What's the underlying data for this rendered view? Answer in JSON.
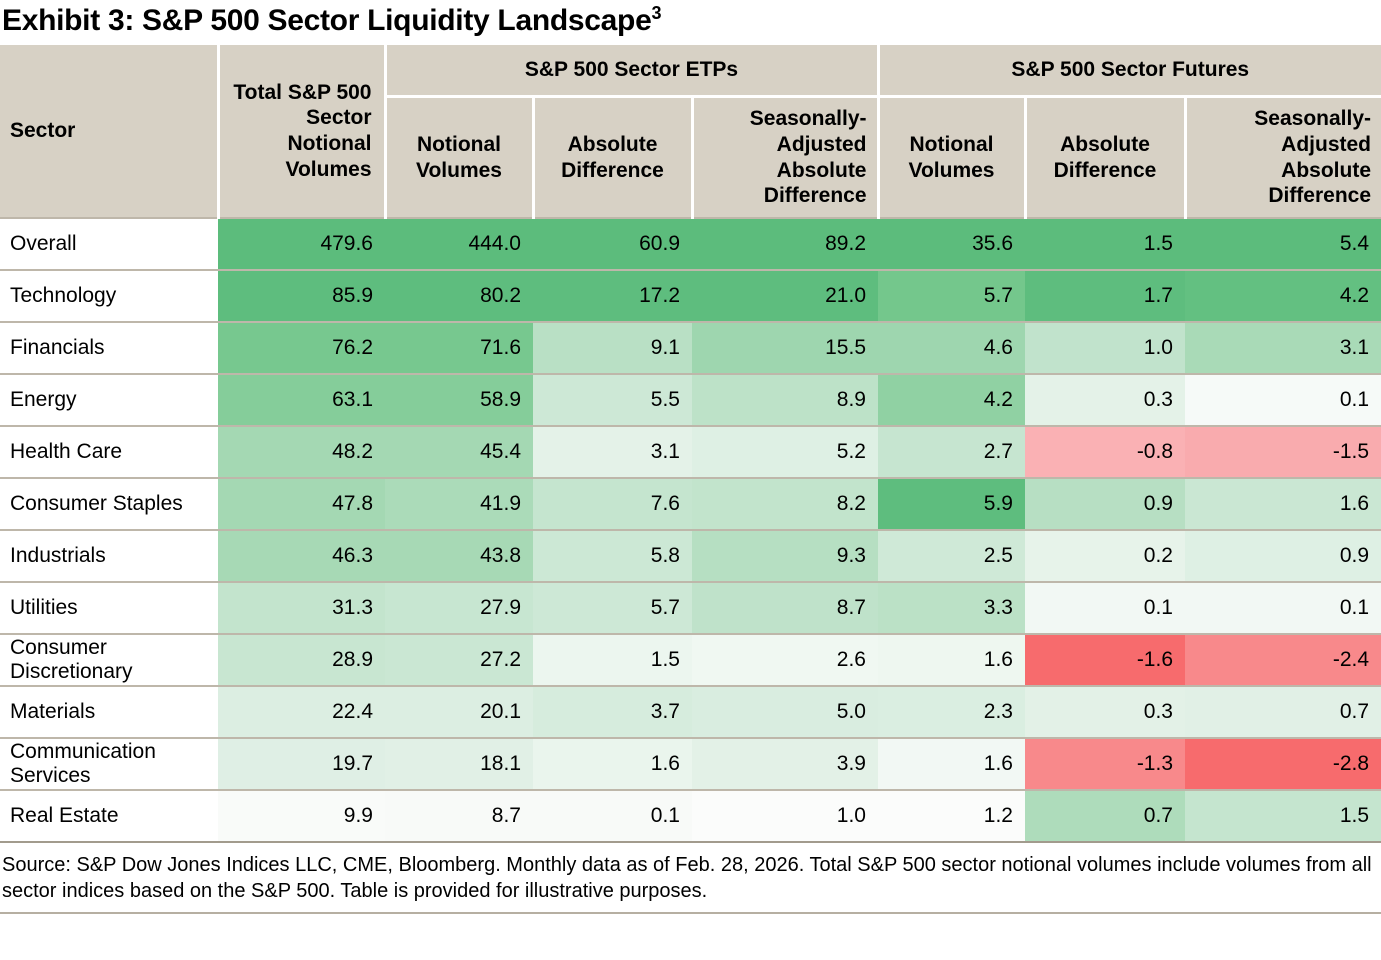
{
  "title": {
    "text": "Exhibit 3: S&P 500 Sector Liquidity Landscape",
    "superscript": "3"
  },
  "table": {
    "corner_label": "Sector",
    "total_header": "Total S&P 500 Sector Notional Volumes",
    "groups": [
      {
        "label": "S&P 500 Sector ETPs",
        "columns": [
          "Notional Volumes",
          "Absolute Difference",
          "Seasonally-Adjusted Absolute Difference"
        ]
      },
      {
        "label": "S&P 500 Sector Futures",
        "columns": [
          "Notional Volumes",
          "Absolute Difference",
          "Seasonally-Adjusted Absolute Difference"
        ]
      }
    ],
    "rows": [
      {
        "sector": "Overall",
        "values": [
          "479.6",
          "444.0",
          "60.9",
          "89.2",
          "35.6",
          "1.5",
          "5.4"
        ],
        "colors": [
          "#5cbc7c",
          "#5cbc7c",
          "#5cbc7c",
          "#5cbc7c",
          "#5cbc7c",
          "#5cbc7c",
          "#5cbc7c"
        ]
      },
      {
        "sector": "Technology",
        "values": [
          "85.9",
          "80.2",
          "17.2",
          "21.0",
          "5.7",
          "1.7",
          "4.2"
        ],
        "colors": [
          "#5ebd7e",
          "#5ebd7e",
          "#5ebd7e",
          "#5ebd7e",
          "#74c78c",
          "#5ebd7e",
          "#63c081"
        ]
      },
      {
        "sector": "Financials",
        "values": [
          "76.2",
          "71.6",
          "9.1",
          "15.5",
          "4.6",
          "1.0",
          "3.1"
        ],
        "colors": [
          "#77c88f",
          "#77c88f",
          "#b9e0c5",
          "#9ed6af",
          "#9ed6af",
          "#c1e3cc",
          "#a9dab7"
        ]
      },
      {
        "sector": "Energy",
        "values": [
          "63.1",
          "58.9",
          "5.5",
          "8.9",
          "4.2",
          "0.3",
          "0.1"
        ],
        "colors": [
          "#85cd9a",
          "#85cd9a",
          "#cde8d6",
          "#bde2c8",
          "#90d1a3",
          "#e4f2e8",
          "#f6faf8"
        ]
      },
      {
        "sector": "Health Care",
        "values": [
          "48.2",
          "45.4",
          "3.1",
          "5.2",
          "2.7",
          "-0.8",
          "-1.5"
        ],
        "colors": [
          "#a4d8b3",
          "#a4d8b3",
          "#e4f2e8",
          "#def0e4",
          "#c6e5d0",
          "#fab1b4",
          "#f9abae"
        ]
      },
      {
        "sector": "Consumer Staples",
        "values": [
          "47.8",
          "41.9",
          "7.6",
          "8.2",
          "5.9",
          "0.9",
          "1.6"
        ],
        "colors": [
          "#a4d8b3",
          "#abdbb9",
          "#c5e5cf",
          "#c2e4cc",
          "#5ebd7e",
          "#b7dfc3",
          "#cae7d3"
        ]
      },
      {
        "sector": "Industrials",
        "values": [
          "46.3",
          "43.8",
          "5.8",
          "9.3",
          "2.5",
          "0.2",
          "0.9"
        ],
        "colors": [
          "#a7d9b5",
          "#a7d9b5",
          "#cce8d5",
          "#b6dfc2",
          "#cfe9d7",
          "#e7f3ea",
          "#def0e4"
        ]
      },
      {
        "sector": "Utilities",
        "values": [
          "31.3",
          "27.9",
          "5.7",
          "8.7",
          "3.3",
          "0.1",
          "0.1"
        ],
        "colors": [
          "#c3e4cd",
          "#c7e6d1",
          "#cde8d6",
          "#bfe2ca",
          "#bbe1c6",
          "#f2f8f4",
          "#f2f8f4"
        ]
      },
      {
        "sector": "Consumer Discretionary",
        "values": [
          "28.9",
          "27.2",
          "1.5",
          "2.6",
          "1.6",
          "-1.6",
          "-2.4"
        ],
        "colors": [
          "#c8e6d1",
          "#cae7d3",
          "#ecf6ef",
          "#f0f8f2",
          "#eef7f0",
          "#f76b6d",
          "#f8898b"
        ]
      },
      {
        "sector": "Materials",
        "values": [
          "22.4",
          "20.1",
          "3.7",
          "5.0",
          "2.3",
          "0.3",
          "0.7"
        ],
        "colors": [
          "#dceee2",
          "#dceee2",
          "#d6ecdd",
          "#d9ede0",
          "#daeee1",
          "#e3f1e7",
          "#e1f0e6"
        ]
      },
      {
        "sector": "Communication Services",
        "values": [
          "19.7",
          "18.1",
          "1.6",
          "3.9",
          "1.6",
          "-1.3",
          "-2.8"
        ],
        "colors": [
          "#dfefe5",
          "#e1f0e6",
          "#eaf5ed",
          "#e3f1e7",
          "#f2f8f4",
          "#f8898b",
          "#f76b6d"
        ]
      },
      {
        "sector": "Real Estate",
        "values": [
          "9.9",
          "8.7",
          "0.1",
          "1.0",
          "1.2",
          "0.7",
          "1.5"
        ],
        "colors": [
          "#f9fbf9",
          "#f8faf8",
          "#f8faf8",
          "#fbfcfb",
          "#fbfcfb",
          "#aedcbb",
          "#c5e5cf"
        ]
      }
    ]
  },
  "footer": {
    "text": "Source: S&P Dow Jones Indices LLC, CME, Bloomberg. Monthly data as of Feb. 28, 2026. Total S&P 500 sector notional volumes include volumes from all sector indices based on the S&P 500. Table is provided for illustrative purposes."
  },
  "colors": {
    "header_bg": "#d7d1c5",
    "positive_strong": "#5cbc7c",
    "positive_weak": "#f6faf8",
    "negative_strong": "#f76b6d",
    "negative_weak": "#fab1b4",
    "row_divider": "#beb7aa"
  }
}
